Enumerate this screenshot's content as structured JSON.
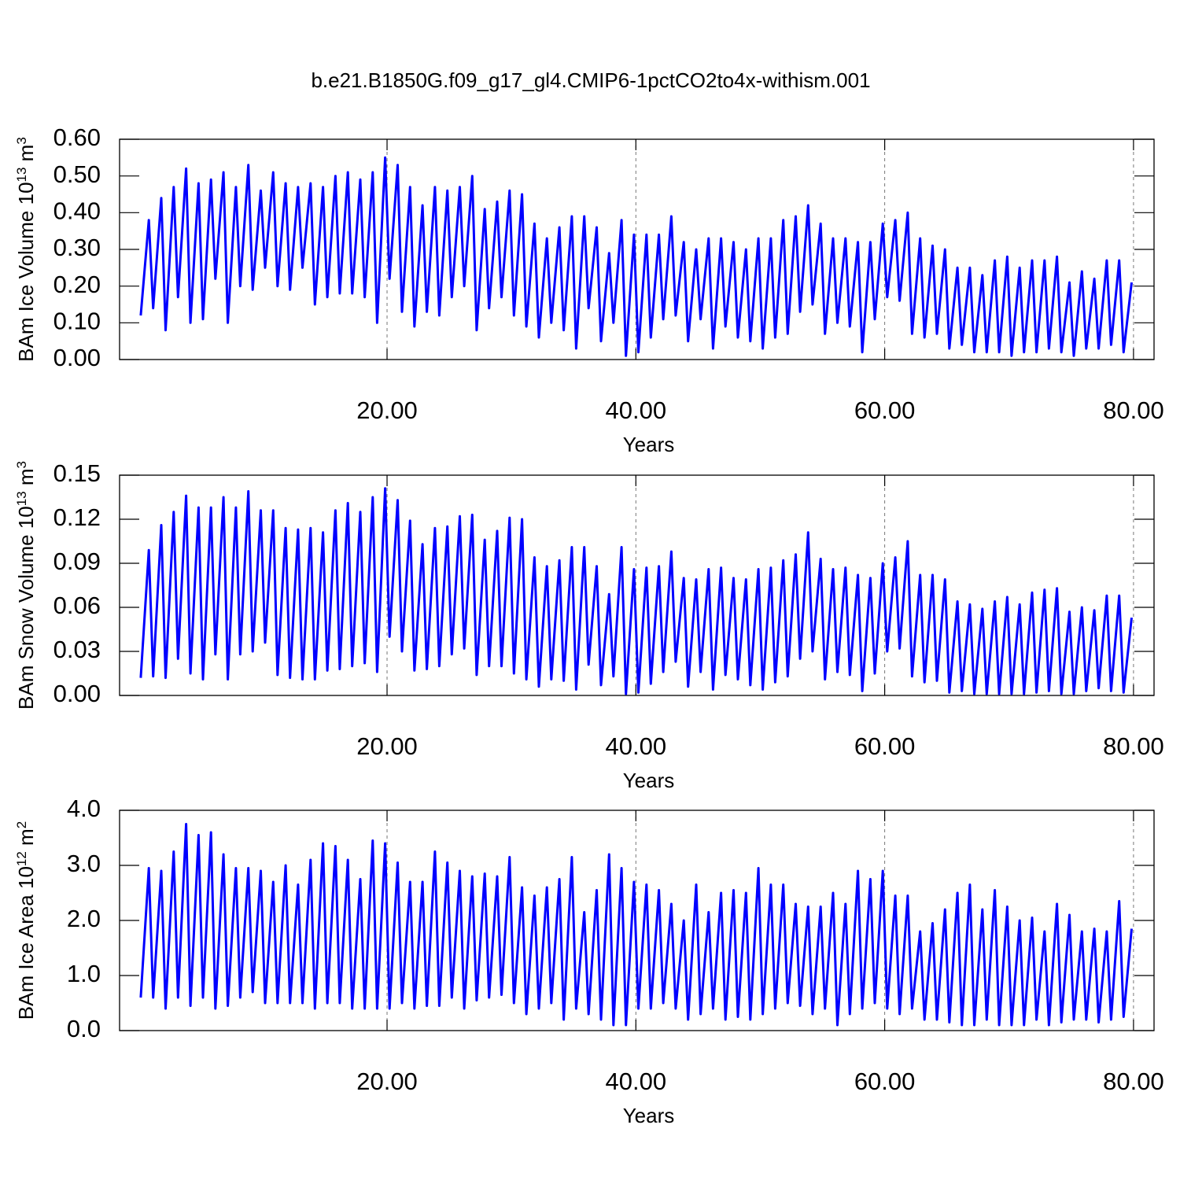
{
  "title": "b.e21.B1850G.f09_g17_gl4.CMIP6-1pctCO2to4x-withism.001",
  "chart_data": [
    {
      "type": "line",
      "ylabel": {
        "text": "BAm Ice Volume 10",
        "exponent": "13",
        "unit": " m",
        "unit_exponent": "3"
      },
      "xlabel": "Years",
      "xlim": [
        -1.5,
        81.65
      ],
      "ylim": [
        0,
        0.6
      ],
      "xticks": [
        {
          "value": 20,
          "label": "20.00"
        },
        {
          "value": 40,
          "label": "40.00"
        },
        {
          "value": 60,
          "label": "60.00"
        },
        {
          "value": 80,
          "label": "80.00"
        }
      ],
      "yticks": [
        {
          "value": 0,
          "label": "0.00"
        },
        {
          "value": 0.1,
          "label": "0.10"
        },
        {
          "value": 0.2,
          "label": "0.20"
        },
        {
          "value": 0.3,
          "label": "0.30"
        },
        {
          "value": 0.4,
          "label": "0.40"
        },
        {
          "value": 0.5,
          "label": "0.50"
        },
        {
          "value": 0.6,
          "label": "0.60"
        }
      ],
      "grid": "x-dashed",
      "series": [
        {
          "color": "#0000ff",
          "values": [
            0.12,
            0.38,
            0.14,
            0.44,
            0.08,
            0.47,
            0.17,
            0.52,
            0.1,
            0.48,
            0.11,
            0.49,
            0.22,
            0.51,
            0.1,
            0.47,
            0.2,
            0.53,
            0.19,
            0.46,
            0.25,
            0.51,
            0.2,
            0.48,
            0.19,
            0.47,
            0.25,
            0.48,
            0.15,
            0.47,
            0.17,
            0.5,
            0.18,
            0.51,
            0.18,
            0.49,
            0.17,
            0.51,
            0.1,
            0.55,
            0.22,
            0.53,
            0.13,
            0.47,
            0.09,
            0.42,
            0.13,
            0.47,
            0.12,
            0.46,
            0.17,
            0.47,
            0.2,
            0.5,
            0.08,
            0.41,
            0.14,
            0.43,
            0.17,
            0.46,
            0.12,
            0.45,
            0.09,
            0.37,
            0.06,
            0.33,
            0.1,
            0.36,
            0.08,
            0.39,
            0.03,
            0.39,
            0.14,
            0.36,
            0.05,
            0.29,
            0.1,
            0.38,
            0.01,
            0.34,
            0.02,
            0.34,
            0.06,
            0.34,
            0.11,
            0.39,
            0.12,
            0.32,
            0.05,
            0.3,
            0.11,
            0.33,
            0.03,
            0.33,
            0.09,
            0.32,
            0.06,
            0.3,
            0.05,
            0.33,
            0.03,
            0.33,
            0.06,
            0.38,
            0.07,
            0.39,
            0.13,
            0.42,
            0.15,
            0.37,
            0.07,
            0.33,
            0.1,
            0.33,
            0.09,
            0.32,
            0.02,
            0.32,
            0.11,
            0.37,
            0.17,
            0.38,
            0.16,
            0.4,
            0.07,
            0.33,
            0.06,
            0.31,
            0.07,
            0.3,
            0.03,
            0.25,
            0.04,
            0.25,
            0.02,
            0.23,
            0.02,
            0.27,
            0.02,
            0.28,
            0.01,
            0.25,
            0.02,
            0.27,
            0.02,
            0.27,
            0.03,
            0.28,
            0.02,
            0.21,
            0.01,
            0.24,
            0.03,
            0.22,
            0.03,
            0.27,
            0.04,
            0.27,
            0.02,
            0.21
          ]
        }
      ]
    },
    {
      "type": "line",
      "ylabel": {
        "text": "BAm Snow Volume 10",
        "exponent": "13",
        "unit": " m",
        "unit_exponent": "3"
      },
      "xlabel": "Years",
      "xlim": [
        -1.5,
        81.65
      ],
      "ylim": [
        0,
        0.15
      ],
      "xticks": [
        {
          "value": 20,
          "label": "20.00"
        },
        {
          "value": 40,
          "label": "40.00"
        },
        {
          "value": 60,
          "label": "60.00"
        },
        {
          "value": 80,
          "label": "80.00"
        }
      ],
      "yticks": [
        {
          "value": 0,
          "label": "0.00"
        },
        {
          "value": 0.03,
          "label": "0.03"
        },
        {
          "value": 0.06,
          "label": "0.06"
        },
        {
          "value": 0.09,
          "label": "0.09"
        },
        {
          "value": 0.12,
          "label": "0.12"
        },
        {
          "value": 0.15,
          "label": "0.15"
        }
      ],
      "grid": "x-dashed",
      "series": [
        {
          "color": "#0000ff",
          "values": [
            0.012,
            0.099,
            0.013,
            0.116,
            0.012,
            0.125,
            0.025,
            0.136,
            0.015,
            0.128,
            0.011,
            0.128,
            0.028,
            0.135,
            0.011,
            0.128,
            0.028,
            0.139,
            0.03,
            0.126,
            0.036,
            0.126,
            0.014,
            0.114,
            0.012,
            0.113,
            0.011,
            0.114,
            0.011,
            0.111,
            0.017,
            0.126,
            0.018,
            0.131,
            0.02,
            0.125,
            0.022,
            0.135,
            0.016,
            0.141,
            0.04,
            0.133,
            0.03,
            0.119,
            0.017,
            0.103,
            0.018,
            0.114,
            0.02,
            0.115,
            0.028,
            0.122,
            0.032,
            0.123,
            0.014,
            0.106,
            0.02,
            0.112,
            0.02,
            0.121,
            0.015,
            0.12,
            0.011,
            0.094,
            0.006,
            0.088,
            0.011,
            0.092,
            0.01,
            0.101,
            0.004,
            0.101,
            0.021,
            0.088,
            0.007,
            0.069,
            0.013,
            0.101,
            0.001,
            0.086,
            0.002,
            0.087,
            0.008,
            0.088,
            0.016,
            0.098,
            0.023,
            0.08,
            0.006,
            0.079,
            0.016,
            0.086,
            0.004,
            0.087,
            0.014,
            0.08,
            0.011,
            0.079,
            0.007,
            0.086,
            0.004,
            0.087,
            0.009,
            0.092,
            0.013,
            0.096,
            0.025,
            0.111,
            0.03,
            0.093,
            0.011,
            0.086,
            0.016,
            0.087,
            0.014,
            0.082,
            0.003,
            0.08,
            0.015,
            0.09,
            0.03,
            0.094,
            0.032,
            0.105,
            0.013,
            0.082,
            0.009,
            0.082,
            0.01,
            0.079,
            0.002,
            0.064,
            0.003,
            0.062,
            0.001,
            0.059,
            0.001,
            0.064,
            0.001,
            0.067,
            0.001,
            0.062,
            0.001,
            0.07,
            0.002,
            0.072,
            0.003,
            0.073,
            0.001,
            0.057,
            0.001,
            0.06,
            0.003,
            0.058,
            0.005,
            0.068,
            0.003,
            0.068,
            0.002,
            0.053
          ]
        }
      ]
    },
    {
      "type": "line",
      "ylabel": {
        "text": "BAm Ice Area 10",
        "exponent": "12",
        "unit": " m",
        "unit_exponent": "2"
      },
      "xlabel": "Years",
      "xlim": [
        -1.5,
        81.65
      ],
      "ylim": [
        0,
        4
      ],
      "xticks": [
        {
          "value": 20,
          "label": "20.00"
        },
        {
          "value": 40,
          "label": "40.00"
        },
        {
          "value": 60,
          "label": "60.00"
        },
        {
          "value": 80,
          "label": "80.00"
        }
      ],
      "yticks": [
        {
          "value": 0,
          "label": "0.0"
        },
        {
          "value": 1,
          "label": "1.0"
        },
        {
          "value": 2,
          "label": "2.0"
        },
        {
          "value": 3,
          "label": "3.0"
        },
        {
          "value": 4,
          "label": "4.0"
        }
      ],
      "grid": "x-dashed",
      "series": [
        {
          "color": "#0000ff",
          "values": [
            0.6,
            2.95,
            0.6,
            2.9,
            0.4,
            3.25,
            0.6,
            3.75,
            0.45,
            3.55,
            0.6,
            3.6,
            0.4,
            3.2,
            0.45,
            2.95,
            0.6,
            2.95,
            0.7,
            2.9,
            0.5,
            2.7,
            0.5,
            3.0,
            0.5,
            2.65,
            0.5,
            3.1,
            0.4,
            3.4,
            0.5,
            3.35,
            0.5,
            3.1,
            0.4,
            2.75,
            0.4,
            3.45,
            0.4,
            3.4,
            0.4,
            3.05,
            0.5,
            2.7,
            0.4,
            2.7,
            0.45,
            3.25,
            0.45,
            3.05,
            0.6,
            2.9,
            0.4,
            2.8,
            0.55,
            2.85,
            0.6,
            2.8,
            0.65,
            3.15,
            0.5,
            2.6,
            0.3,
            2.45,
            0.4,
            2.6,
            0.5,
            2.75,
            0.2,
            3.15,
            0.4,
            2.15,
            0.3,
            2.55,
            0.2,
            3.2,
            0.1,
            2.95,
            0.1,
            2.7,
            0.4,
            2.65,
            0.4,
            2.55,
            0.5,
            2.3,
            0.4,
            2.0,
            0.2,
            2.65,
            0.3,
            2.15,
            0.4,
            2.5,
            0.2,
            2.55,
            0.25,
            2.5,
            0.2,
            2.95,
            0.3,
            2.65,
            0.4,
            2.65,
            0.5,
            2.3,
            0.45,
            2.25,
            0.3,
            2.25,
            0.4,
            2.5,
            0.1,
            2.3,
            0.3,
            2.9,
            0.4,
            2.75,
            0.5,
            2.9,
            0.4,
            2.45,
            0.3,
            2.45,
            0.4,
            1.8,
            0.2,
            1.95,
            0.2,
            2.2,
            0.15,
            2.5,
            0.1,
            2.65,
            0.1,
            2.2,
            0.2,
            2.55,
            0.1,
            2.25,
            0.1,
            2.0,
            0.1,
            2.05,
            0.2,
            1.8,
            0.1,
            2.3,
            0.15,
            2.1,
            0.2,
            1.8,
            0.2,
            1.85,
            0.15,
            1.8,
            0.2,
            2.35,
            0.25,
            1.85
          ]
        }
      ]
    }
  ]
}
